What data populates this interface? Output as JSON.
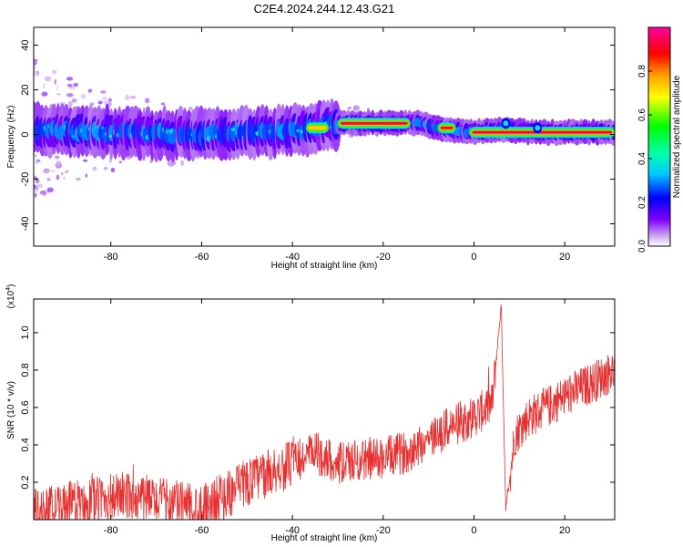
{
  "title": "C2E4.2024.244.12.43.G21",
  "chart_data": [
    {
      "type": "heatmap",
      "xlabel": "Height of straight line (km)",
      "ylabel": "Frequency (Hz)",
      "xlim": [
        -97,
        31
      ],
      "ylim": [
        -50,
        48
      ],
      "xticks": [
        -80,
        -60,
        -40,
        -20,
        0,
        20
      ],
      "xtick_labels": [
        "-80",
        "-60",
        "-40",
        "-20",
        "0",
        "20"
      ],
      "yticks": [
        40,
        20,
        0,
        -20,
        -40
      ],
      "ytick_labels": [
        "40",
        "20",
        "0",
        "-20",
        "-40"
      ],
      "grid": false,
      "colorbar": {
        "label": "Normalized spectral amplitude",
        "range": [
          0,
          1
        ],
        "ticks": [
          0.0,
          0.2,
          0.4,
          0.6,
          0.8
        ],
        "tick_labels": [
          "0.0",
          "0.2",
          "0.4",
          "0.6",
          "0.8"
        ],
        "colormap": [
          "#ffffff",
          "#c8a0f0",
          "#8000ff",
          "#0000ff",
          "#00c8ff",
          "#00ffb0",
          "#00ff00",
          "#ffff00",
          "#ffa000",
          "#ff0000",
          "#ff00a0"
        ]
      },
      "band": {
        "center_freq_hz": [
          {
            "x": -95,
            "f": 2
          },
          {
            "x": -80,
            "f": 1
          },
          {
            "x": -60,
            "f": 0
          },
          {
            "x": -45,
            "f": 1
          },
          {
            "x": -35,
            "f": 3
          },
          {
            "x": -30,
            "f": 5
          },
          {
            "x": -12,
            "f": 5
          },
          {
            "x": -8,
            "f": 3
          },
          {
            "x": -2,
            "f": 1
          },
          {
            "x": 6,
            "f": 2
          },
          {
            "x": 14,
            "f": 1
          },
          {
            "x": 31,
            "f": 1
          }
        ],
        "peak_segments": [
          {
            "x0": -30,
            "x1": -14,
            "f": 5,
            "amp": 0.95
          },
          {
            "x0": -8,
            "x1": -4,
            "f": 3,
            "amp": 0.9
          },
          {
            "x0": -1,
            "x1": 31,
            "f": 1,
            "amp": 0.95
          },
          {
            "x0": -37,
            "x1": -32,
            "f": 3,
            "amp": 0.75
          }
        ]
      }
    },
    {
      "type": "line",
      "xlabel": "Height of straight line (km)",
      "ylabel": "SNR (10 * v/v)",
      "y_multiplier": "(x10",
      "y_multiplier_exp": "4",
      "y_multiplier_close": ")",
      "xlim": [
        -97,
        31
      ],
      "ylim": [
        0,
        1.18
      ],
      "xticks": [
        -80,
        -60,
        -40,
        -20,
        0,
        20
      ],
      "xtick_labels": [
        "-80",
        "-60",
        "-40",
        "-20",
        "0",
        "20"
      ],
      "yticks": [
        0.2,
        0.4,
        0.6,
        0.8,
        1.0
      ],
      "ytick_labels": [
        "0.2",
        "0.4",
        "0.6",
        "0.8",
        "1.0"
      ],
      "grid": false,
      "line_color": "#e83030",
      "trend": [
        {
          "x": -97,
          "y": 0.04
        },
        {
          "x": -90,
          "y": 0.07
        },
        {
          "x": -80,
          "y": 0.12
        },
        {
          "x": -75,
          "y": 0.13
        },
        {
          "x": -70,
          "y": 0.1
        },
        {
          "x": -60,
          "y": 0.07
        },
        {
          "x": -55,
          "y": 0.12
        },
        {
          "x": -50,
          "y": 0.2
        },
        {
          "x": -45,
          "y": 0.25
        },
        {
          "x": -40,
          "y": 0.3
        },
        {
          "x": -35,
          "y": 0.36
        },
        {
          "x": -30,
          "y": 0.3
        },
        {
          "x": -25,
          "y": 0.32
        },
        {
          "x": -20,
          "y": 0.33
        },
        {
          "x": -15,
          "y": 0.36
        },
        {
          "x": -10,
          "y": 0.43
        },
        {
          "x": -5,
          "y": 0.5
        },
        {
          "x": 0,
          "y": 0.55
        },
        {
          "x": 4,
          "y": 0.62
        },
        {
          "x": 6,
          "y": 1.15
        },
        {
          "x": 7,
          "y": 0.05
        },
        {
          "x": 9,
          "y": 0.45
        },
        {
          "x": 12,
          "y": 0.55
        },
        {
          "x": 16,
          "y": 0.6
        },
        {
          "x": 20,
          "y": 0.66
        },
        {
          "x": 25,
          "y": 0.72
        },
        {
          "x": 31,
          "y": 0.8
        }
      ]
    }
  ]
}
